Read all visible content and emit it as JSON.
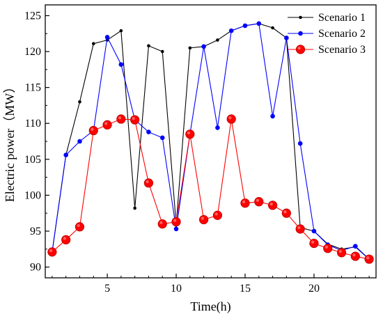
{
  "chart_data": {
    "type": "line",
    "xlabel": "Time(h)",
    "ylabel": "Electric power（MW）",
    "xlim": [
      0.5,
      24.5
    ],
    "ylim": [
      88.5,
      126.5
    ],
    "xticks": [
      5,
      10,
      15,
      20
    ],
    "yticks": [
      90,
      95,
      100,
      105,
      110,
      115,
      120,
      125
    ],
    "grid": false,
    "legend_position": "top-right",
    "series": [
      {
        "name": "Scenario 1",
        "color": "#000000",
        "marker": "small-dot",
        "x": [
          1,
          2,
          3,
          4,
          5,
          6,
          7,
          8,
          9,
          10,
          11,
          12,
          13,
          14,
          15,
          16,
          17,
          18,
          19,
          20,
          21,
          22,
          23,
          24
        ],
        "values": [
          92.1,
          105.6,
          113.0,
          121.1,
          121.6,
          122.9,
          98.2,
          120.8,
          120.0,
          95.9,
          120.5,
          120.7,
          121.6,
          122.9,
          123.6,
          123.9,
          123.3,
          121.9,
          95.5,
          95.0,
          93.2,
          92.5,
          92.8,
          91.1
        ]
      },
      {
        "name": "Scenario 2",
        "color": "#0000ff",
        "marker": "medium-dot",
        "x": [
          1,
          2,
          3,
          4,
          5,
          6,
          7,
          8,
          9,
          10,
          11,
          12,
          13,
          14,
          15,
          16,
          17,
          18,
          19,
          20,
          21,
          22,
          23,
          24
        ],
        "values": [
          92.1,
          105.6,
          107.5,
          109.0,
          122.0,
          118.2,
          110.5,
          108.8,
          108.0,
          95.3,
          108.5,
          120.7,
          109.4,
          122.9,
          123.6,
          123.9,
          111.0,
          121.9,
          107.2,
          95.0,
          93.1,
          92.3,
          92.9,
          91.1
        ]
      },
      {
        "name": "Scenario 3",
        "color": "#ff0000",
        "marker": "large-dot",
        "x": [
          1,
          2,
          3,
          4,
          5,
          6,
          7,
          8,
          9,
          10,
          11,
          12,
          13,
          14,
          15,
          16,
          17,
          18,
          19,
          20,
          21,
          22,
          23,
          24
        ],
        "values": [
          92.1,
          93.8,
          95.6,
          109.0,
          109.8,
          110.6,
          110.5,
          101.7,
          96.0,
          96.3,
          108.5,
          96.6,
          97.2,
          110.6,
          98.9,
          99.1,
          98.6,
          97.5,
          95.3,
          93.3,
          92.6,
          92.0,
          91.5,
          91.1
        ]
      }
    ]
  }
}
